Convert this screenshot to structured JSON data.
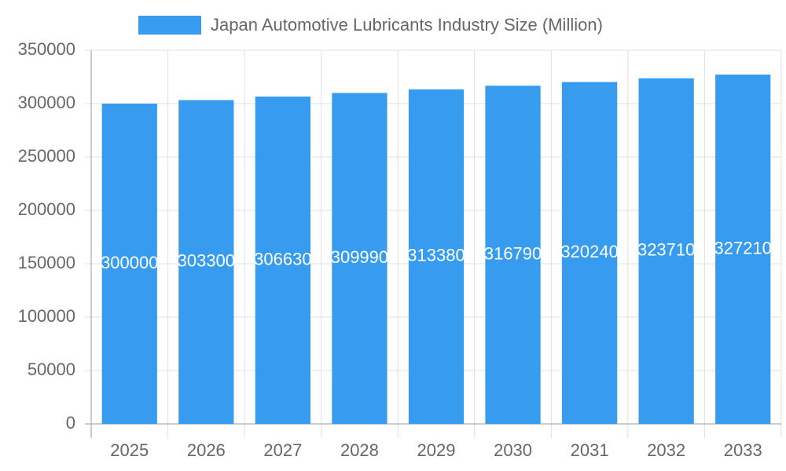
{
  "chart_data": {
    "type": "bar",
    "categories": [
      "2025",
      "2026",
      "2027",
      "2028",
      "2029",
      "2030",
      "2031",
      "2032",
      "2033"
    ],
    "series": [
      {
        "name": "Japan Automotive Lubricants Industry Size (Million)",
        "color": "#379cf0",
        "values": [
          300000,
          303300,
          306630,
          309990,
          313380,
          316790,
          320240,
          323710,
          327210
        ]
      }
    ],
    "ylim": [
      0,
      350000
    ],
    "yticks": [
      0,
      50000,
      100000,
      150000,
      200000,
      250000,
      300000,
      350000
    ],
    "grid": true,
    "legend": "top",
    "data_labels": true
  }
}
